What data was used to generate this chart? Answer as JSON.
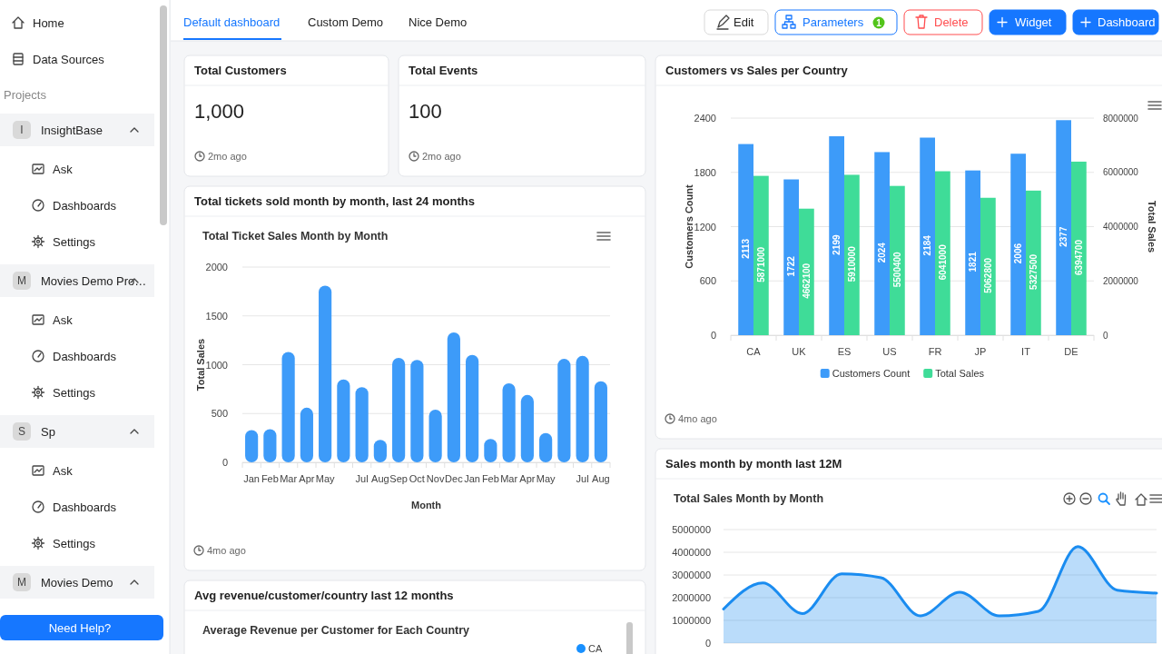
{
  "chart_data": [
    {
      "type": "other",
      "annotations": [
        "Home",
        "Data Sources",
        "Projects",
        "I",
        "InsightBase",
        "Ask",
        "Dashboards",
        "Settings",
        "M",
        "Movies Demo Pro…",
        "Ask",
        "Dashboards",
        "Settings",
        "S",
        "Sp",
        "Ask",
        "Dashboards",
        "Settings",
        "M",
        "Movies Demo",
        "Need Help?",
        "Default dashboard",
        "Custom Demo",
        "Nice Demo",
        "Edit",
        "Parameters",
        "1",
        "Delete",
        "Widget",
        "Dashboard"
      ]
    },
    {
      "type": "other",
      "title": "Total Customers",
      "annotations": [
        "1,000",
        "2mo ago"
      ]
    },
    {
      "type": "other",
      "title": "Total Events",
      "annotations": [
        "100",
        "2mo ago"
      ]
    },
    {
      "type": "bar",
      "title": "Total tickets sold month by month, last 24 months",
      "subtitle": "Total Ticket Sales Month by Month",
      "xlabel": "Month",
      "ylabel": "Total Sales",
      "categories": [
        "Jan",
        "Feb",
        "Mar",
        "Apr",
        "May",
        null,
        "Jul",
        "Aug",
        "Sep",
        "Oct",
        "Nov",
        "Dec",
        "Jan",
        "Feb",
        "Mar",
        "Apr",
        "May",
        null,
        "Jul",
        "Aug"
      ],
      "values": [
        330,
        340,
        1130,
        560,
        1810,
        850,
        770,
        230,
        1070,
        1050,
        540,
        1330,
        1100,
        240,
        810,
        690,
        300,
        1060,
        1090,
        830
      ],
      "color": "#3d9bf9",
      "ylim": [
        0,
        2000
      ],
      "yticks": [
        0,
        500,
        1000,
        1500,
        2000
      ],
      "grid": "y",
      "annotations": [
        "4mo ago"
      ]
    },
    {
      "type": "bar",
      "title": "Customers vs Sales per Country",
      "ylabel": "Customers Count",
      "y2label": "Total Sales",
      "categories": [
        "CA",
        "UK",
        "ES",
        "US",
        "FR",
        "JP",
        "IT",
        "DE"
      ],
      "series": [
        {
          "name": "Customers Count",
          "color": "#3d9bf9",
          "values": [
            2113,
            1722,
            2199,
            2024,
            2184,
            1821,
            2006,
            2377
          ]
        },
        {
          "name": "Total Sales",
          "color": "#3fdc98",
          "axis": "y2",
          "values": [
            5871000,
            4662100,
            5910000,
            5500400,
            6041000,
            5062800,
            5327500,
            6394700
          ]
        }
      ],
      "ylim": [
        0,
        2400
      ],
      "yticks": [
        0,
        600,
        1200,
        1800,
        2400
      ],
      "y2lim": [
        0,
        8000000
      ],
      "y2ticks": [
        0,
        2000000,
        4000000,
        6000000,
        8000000
      ],
      "grid": "y",
      "legend": "bottom",
      "data_labels": true,
      "annotations": [
        "4mo ago"
      ]
    },
    {
      "type": "area",
      "title": "Sales month by month last 12M",
      "subtitle": "Total Sales Month by Month",
      "categories": [
        null,
        null,
        null,
        null,
        null,
        null,
        null,
        null,
        null,
        null,
        null,
        null
      ],
      "values": [
        1500000,
        2650000,
        1300000,
        3050000,
        2880000,
        1200000,
        2240000,
        1200000,
        1400000,
        4250000,
        2330000,
        2200000
      ],
      "color": "#1a8cf0",
      "ylim": [
        0,
        5000000
      ],
      "yticks": [
        0,
        1000000,
        2000000,
        3000000,
        4000000,
        5000000
      ],
      "grid": "y",
      "tick_labels": "y"
    },
    {
      "type": "other",
      "title": "Avg revenue/customer/country last 12 months",
      "subtitle": "Average Revenue per Customer for Each Country",
      "annotations": [
        "CA"
      ]
    }
  ]
}
